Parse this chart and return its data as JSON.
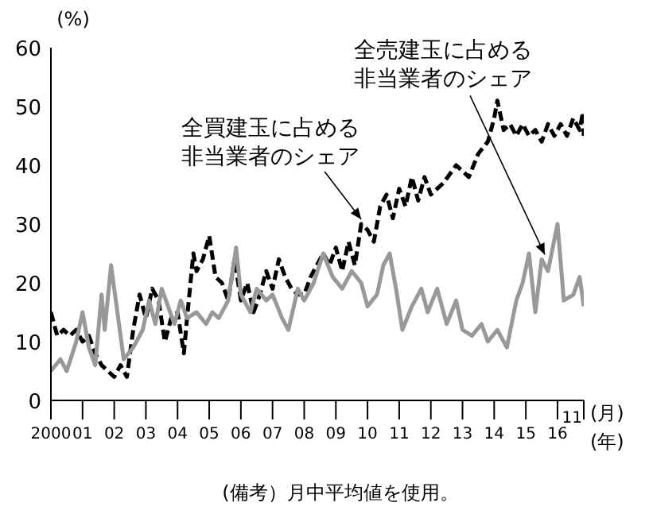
{
  "chart_data": {
    "type": "line",
    "ylabel": "(%)",
    "xlabel": "(年)",
    "xlim": [
      2000,
      2016.83
    ],
    "xticks": [
      {
        "value": 2000,
        "label": "2000"
      },
      {
        "value": 2001,
        "label": "01"
      },
      {
        "value": 2002,
        "label": "02"
      },
      {
        "value": 2003,
        "label": "03"
      },
      {
        "value": 2004,
        "label": "04"
      },
      {
        "value": 2005,
        "label": "05"
      },
      {
        "value": 2006,
        "label": "06"
      },
      {
        "value": 2007,
        "label": "07"
      },
      {
        "value": 2008,
        "label": "08"
      },
      {
        "value": 2009,
        "label": "09"
      },
      {
        "value": 2010,
        "label": "10"
      },
      {
        "value": 2011,
        "label": "11"
      },
      {
        "value": 2012,
        "label": "12"
      },
      {
        "value": 2013,
        "label": "13"
      },
      {
        "value": 2014,
        "label": "14"
      },
      {
        "value": 2015,
        "label": "15"
      },
      {
        "value": 2016,
        "label": "16"
      },
      {
        "value": 2016.83,
        "label": null
      }
    ],
    "ylim": [
      0,
      60
    ],
    "yticks": [
      0,
      10,
      20,
      30,
      40,
      50,
      60
    ],
    "grid": false,
    "legend": false,
    "marker": "none",
    "annotations": [
      {
        "text": "全買建玉に占める非当業者のシェア",
        "x": 2009.8,
        "y": 30
      },
      {
        "text": "全売建玉に占める非当業者のシェア",
        "x": 2015.6,
        "y": 24
      },
      "11",
      "(月)",
      "(備考）月中平均値を使用。"
    ],
    "series": [
      {
        "color": "#000000",
        "line_style": "dashed",
        "x": [
          2000,
          2000.2,
          2000.4,
          2000.6,
          2000.8,
          2001,
          2001.2,
          2001.4,
          2001.6,
          2001.8,
          2002,
          2002.2,
          2002.4,
          2002.6,
          2002.8,
          2003,
          2003.2,
          2003.4,
          2003.6,
          2003.8,
          2004,
          2004.2,
          2004.3,
          2004.5,
          2004.6,
          2004.8,
          2005,
          2005.2,
          2005.4,
          2005.6,
          2005.8,
          2006,
          2006.2,
          2006.4,
          2006.6,
          2006.8,
          2007,
          2007.2,
          2007.4,
          2007.6,
          2007.8,
          2008,
          2008.2,
          2008.4,
          2008.6,
          2008.8,
          2009,
          2009.2,
          2009.4,
          2009.6,
          2009.8,
          2010,
          2010.2,
          2010.4,
          2010.6,
          2010.8,
          2011,
          2011.2,
          2011.4,
          2011.6,
          2011.8,
          2012,
          2012.4,
          2012.8,
          2013.2,
          2013.5,
          2013.8,
          2014,
          2014.1,
          2014.3,
          2014.5,
          2014.7,
          2014.9,
          2015.1,
          2015.3,
          2015.5,
          2015.7,
          2015.9,
          2016.1,
          2016.3,
          2016.5,
          2016.7,
          2016.8,
          2016.83
        ],
        "values": [
          15,
          11,
          12,
          11,
          12,
          10,
          11,
          8,
          6,
          5,
          4,
          6,
          4,
          12,
          18,
          14,
          19,
          17,
          10,
          14,
          15,
          8,
          14,
          25,
          22,
          24,
          28,
          21,
          20,
          17,
          24,
          17,
          20,
          15,
          18,
          22,
          19,
          24,
          21,
          19,
          18,
          18,
          21,
          23,
          25,
          23,
          26,
          22,
          27,
          23,
          30,
          29,
          27,
          33,
          35,
          31,
          36,
          33,
          38,
          34,
          38,
          35,
          37,
          40,
          38,
          42,
          44,
          48,
          51,
          46,
          47,
          45,
          47,
          45,
          46,
          44,
          47,
          45,
          47,
          45,
          48,
          46,
          49,
          45
        ]
      },
      {
        "color": "#999999",
        "line_style": "solid",
        "x": [
          2000,
          2000.3,
          2000.5,
          2000.8,
          2001,
          2001.2,
          2001.4,
          2001.6,
          2001.7,
          2001.9,
          2002.1,
          2002.3,
          2002.6,
          2002.9,
          2003.1,
          2003.3,
          2003.5,
          2003.7,
          2003.9,
          2004.1,
          2004.3,
          2004.6,
          2004.9,
          2005.1,
          2005.3,
          2005.6,
          2005.85,
          2006,
          2006.3,
          2006.5,
          2006.8,
          2007,
          2007.3,
          2007.5,
          2007.8,
          2008,
          2008.3,
          2008.6,
          2008.9,
          2009.2,
          2009.5,
          2009.8,
          2010,
          2010.3,
          2010.5,
          2010.7,
          2010.9,
          2011.1,
          2011.4,
          2011.7,
          2011.9,
          2012.2,
          2012.5,
          2012.8,
          2013,
          2013.3,
          2013.6,
          2013.8,
          2014.1,
          2014.4,
          2014.7,
          2014.9,
          2015.1,
          2015.3,
          2015.5,
          2015.7,
          2016,
          2016.2,
          2016.5,
          2016.7,
          2016.83
        ],
        "values": [
          5,
          7,
          5,
          10,
          15,
          9,
          6,
          18,
          12,
          23,
          15,
          7,
          9,
          12,
          17,
          13,
          19,
          16,
          13,
          17,
          14,
          15,
          13,
          15,
          14,
          17,
          26,
          18,
          15,
          19,
          17,
          18,
          14,
          12,
          19,
          17,
          20,
          25,
          21,
          19,
          22,
          20,
          16,
          18,
          23,
          25,
          19,
          12,
          16,
          19,
          15,
          19,
          13,
          17,
          12,
          11,
          13,
          10,
          12,
          9,
          17,
          20,
          25,
          15,
          24,
          22,
          30,
          17,
          18,
          21,
          16
        ]
      }
    ]
  }
}
